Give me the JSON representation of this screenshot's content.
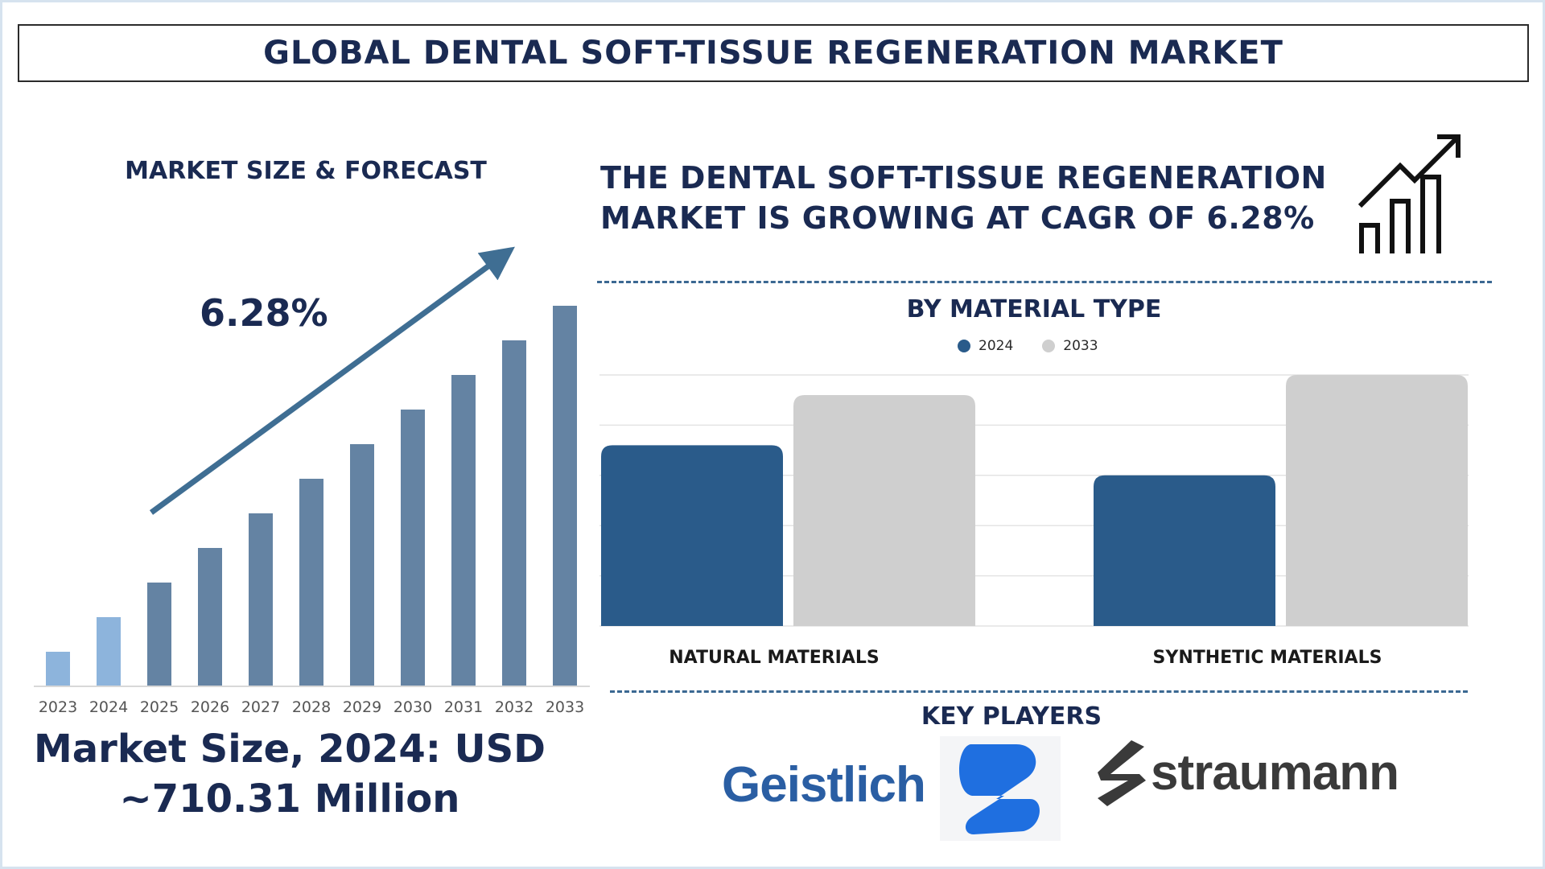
{
  "title": "GLOBAL DENTAL SOFT-TISSUE REGENERATION MARKET",
  "left_heading": "MARKET SIZE & FORECAST",
  "cagr_label": "6.28%",
  "right_heading_line1": "THE DENTAL SOFT-TISSUE REGENERATION",
  "right_heading_line2": "MARKET IS GROWING AT CAGR OF 6.28%",
  "market_size_line1": "Market Size, 2024: USD",
  "market_size_line2": "~710.31 Million",
  "key_players_heading": "KEY PLAYERS",
  "key_players": [
    "Geistlich",
    "straumann"
  ],
  "colors": {
    "title_text": "#1a2a52",
    "bar_light": "#8db4dc",
    "bar_forecast": "#6483a3",
    "series_2024": "#2a5b8a",
    "series_2033": "#cfcfcf",
    "arrow": "#3f6e93",
    "dashed_divider": "#3b6892"
  },
  "chart_data": [
    {
      "type": "bar",
      "title": "",
      "categories": [
        "2023",
        "2024",
        "2025",
        "2026",
        "2027",
        "2028",
        "2029",
        "2030",
        "2031",
        "2032",
        "2033"
      ],
      "values": [
        1.0,
        2.0,
        3.0,
        4.0,
        5.0,
        6.0,
        7.0,
        8.0,
        9.0,
        10.0,
        11.0
      ],
      "highlighted": [
        "2023",
        "2024"
      ],
      "ylim": [
        0,
        11
      ],
      "grid": false,
      "annotation": "6.28%"
    },
    {
      "type": "bar",
      "title": "BY MATERIAL TYPE",
      "categories": [
        "NATURAL MATERIALS",
        "SYNTHETIC MATERIALS"
      ],
      "series": [
        {
          "name": "2024",
          "values": [
            3.6,
            3.0
          ]
        },
        {
          "name": "2033",
          "values": [
            4.6,
            5.0
          ]
        }
      ],
      "ylim": [
        0,
        5
      ],
      "grid": true,
      "legend_position": "top-center"
    }
  ]
}
